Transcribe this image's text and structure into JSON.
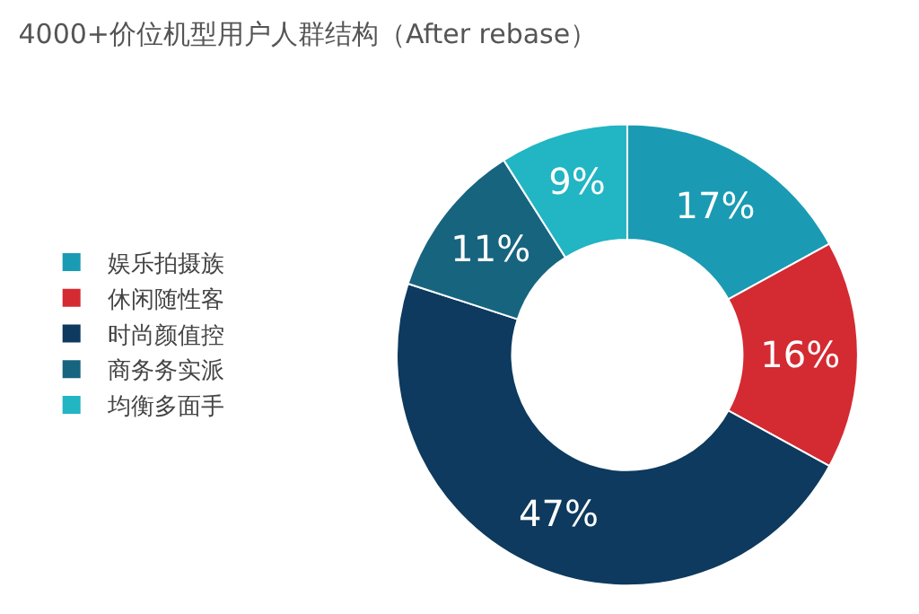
{
  "chart_data": {
    "type": "donut",
    "title": "4000+价位机型用户人群结构（After rebase）",
    "categories": [
      "娱乐拍摄族",
      "休闲随性客",
      "时尚颜值控",
      "商务务实派",
      "均衡多面手"
    ],
    "values": [
      17,
      16,
      47,
      11,
      9
    ],
    "value_labels": [
      "17%",
      "16%",
      "47%",
      "11%",
      "9%"
    ],
    "colors": [
      "#1a9bb3",
      "#d42a32",
      "#0d3a5e",
      "#17647f",
      "#22b5c4"
    ],
    "legend": "left"
  }
}
